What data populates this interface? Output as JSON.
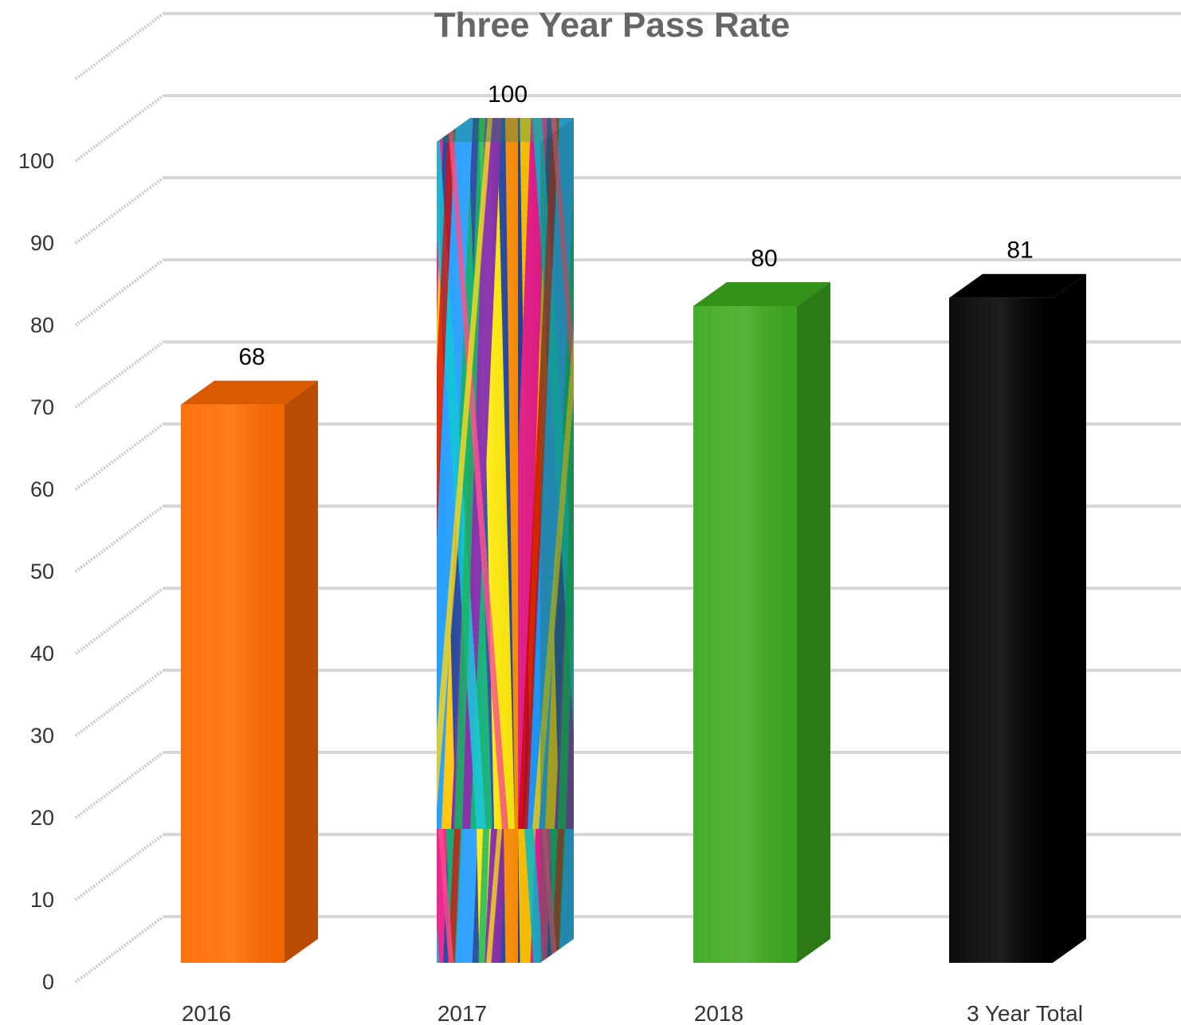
{
  "chart_data": {
    "type": "bar",
    "title": "Three Year Pass Rate",
    "xlabel": "",
    "ylabel": "",
    "categories": [
      "2016",
      "2017",
      "2018",
      "3 Year Total"
    ],
    "values": [
      68,
      100,
      80,
      81
    ],
    "data_labels": [
      "68",
      "100",
      "80",
      "81"
    ],
    "y_ticks": [
      "0",
      "10",
      "20",
      "30",
      "40",
      "50",
      "60",
      "70",
      "80",
      "90",
      "100"
    ],
    "ylim": [
      0,
      110
    ],
    "grid": true,
    "legend": "none",
    "style": "3d-column",
    "bar_colors": [
      "#ff6a00",
      "rainbow-pattern",
      "#3daa1f",
      "#000000"
    ]
  }
}
